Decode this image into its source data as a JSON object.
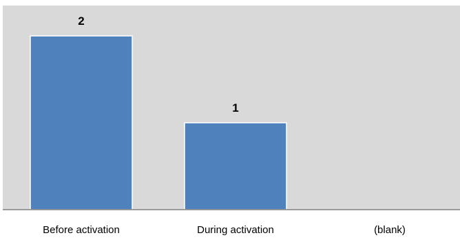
{
  "chart_data": {
    "type": "bar",
    "categories": [
      "Before activation",
      "During activation",
      "(blank)"
    ],
    "values": [
      2,
      1,
      null
    ],
    "data_labels": [
      "2",
      "1",
      ""
    ],
    "ylim": [
      0,
      2.35
    ],
    "grid": false,
    "legend": "none",
    "colors": {
      "plot_background": "#d9d9d9",
      "bar_fill": "#4f81bd",
      "bar_stroke": "#ffffff",
      "axis": "#808080"
    }
  }
}
